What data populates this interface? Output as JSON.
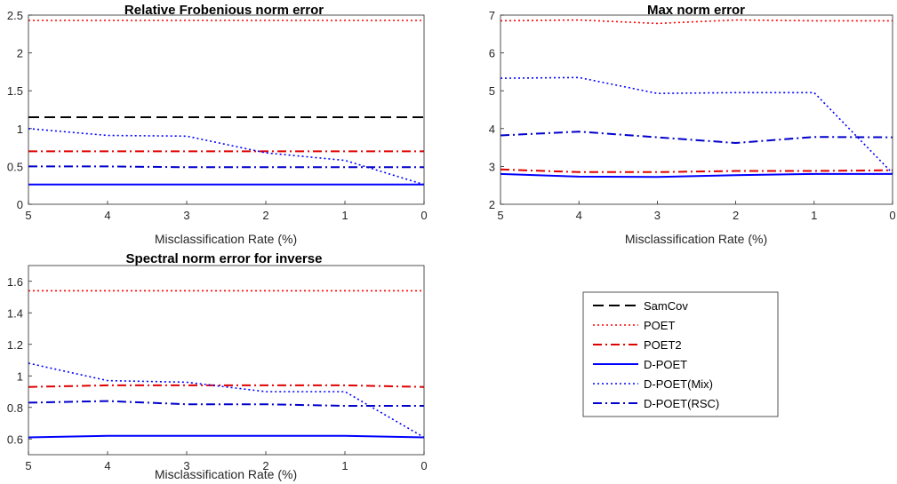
{
  "legend": {
    "placement": "lower-right",
    "entries": [
      "SamCov",
      "POET",
      "POET2",
      "D-POET",
      "D-POET(Mix)",
      "D-POET(RSC)"
    ]
  },
  "series_styles": [
    {
      "name": "SamCov",
      "color": "#000000",
      "dash": "dashed"
    },
    {
      "name": "POET",
      "color": "#ff0000",
      "dash": "dotted"
    },
    {
      "name": "POET2",
      "color": "#e00000",
      "dash": "dashdot"
    },
    {
      "name": "D-POET",
      "color": "#0000ff",
      "dash": "solid"
    },
    {
      "name": "D-POET(Mix)",
      "color": "#0000ff",
      "dash": "dotted"
    },
    {
      "name": "D-POET(RSC)",
      "color": "#0000cc",
      "dash": "dashdot"
    }
  ],
  "chart_data": [
    {
      "type": "line",
      "title": "Relative Frobenious norm error",
      "xlabel": "Misclassification Rate (%)",
      "ylabel": "",
      "x": [
        5,
        4,
        3,
        2,
        1,
        0
      ],
      "x_reversed": true,
      "xlim": [
        0,
        5
      ],
      "ylim": [
        0,
        2.5
      ],
      "xticks": [
        "5",
        "4",
        "3",
        "2",
        "1",
        "0"
      ],
      "yticks": [
        "0",
        "0.5",
        "1",
        "1.5",
        "2",
        "2.5"
      ],
      "grid": false,
      "series": [
        {
          "name": "SamCov",
          "values": [
            1.15,
            1.15,
            1.15,
            1.15,
            1.15,
            1.15
          ]
        },
        {
          "name": "POET",
          "values": [
            2.43,
            2.43,
            2.43,
            2.43,
            2.43,
            2.43
          ]
        },
        {
          "name": "POET2",
          "values": [
            0.7,
            0.7,
            0.7,
            0.7,
            0.7,
            0.7
          ]
        },
        {
          "name": "D-POET",
          "values": [
            0.26,
            0.26,
            0.26,
            0.26,
            0.26,
            0.26
          ]
        },
        {
          "name": "D-POET(Mix)",
          "values": [
            1.0,
            0.91,
            0.9,
            0.68,
            0.58,
            0.26
          ]
        },
        {
          "name": "D-POET(RSC)",
          "values": [
            0.5,
            0.5,
            0.49,
            0.49,
            0.49,
            0.49
          ]
        }
      ]
    },
    {
      "type": "line",
      "title": "Max norm error",
      "xlabel": "Misclassification Rate (%)",
      "ylabel": "",
      "x": [
        5,
        4,
        3,
        2,
        1,
        0
      ],
      "x_reversed": true,
      "xlim": [
        0,
        5
      ],
      "ylim": [
        2,
        7
      ],
      "xticks": [
        "5",
        "4",
        "3",
        "2",
        "1",
        "0"
      ],
      "yticks": [
        "2",
        "3",
        "4",
        "5",
        "6",
        "7"
      ],
      "grid": false,
      "series": [
        {
          "name": "POET",
          "values": [
            6.85,
            6.87,
            6.78,
            6.87,
            6.85,
            6.85
          ]
        },
        {
          "name": "POET2",
          "values": [
            2.92,
            2.85,
            2.85,
            2.88,
            2.88,
            2.9
          ]
        },
        {
          "name": "D-POET",
          "values": [
            2.8,
            2.73,
            2.72,
            2.77,
            2.8,
            2.8
          ]
        },
        {
          "name": "D-POET(Mix)",
          "values": [
            5.33,
            5.35,
            4.93,
            4.95,
            4.95,
            2.82
          ]
        },
        {
          "name": "D-POET(RSC)",
          "values": [
            3.82,
            3.92,
            3.77,
            3.62,
            3.78,
            3.77
          ]
        }
      ]
    },
    {
      "type": "line",
      "title": "Spectral norm error for inverse",
      "xlabel": "Misclassification Rate (%)",
      "ylabel": "",
      "x": [
        5,
        4,
        3,
        2,
        1,
        0
      ],
      "x_reversed": true,
      "xlim": [
        0,
        5
      ],
      "ylim": [
        0.5,
        1.7
      ],
      "xticks": [
        "5",
        "4",
        "3",
        "2",
        "1",
        "0"
      ],
      "yticks": [
        "0.6",
        "0.8",
        "1",
        "1.2",
        "1.4",
        "1.6"
      ],
      "ytick_values": [
        0.6,
        0.8,
        1.0,
        1.2,
        1.4,
        1.6
      ],
      "grid": false,
      "series": [
        {
          "name": "POET",
          "values": [
            1.54,
            1.54,
            1.54,
            1.54,
            1.54,
            1.54
          ]
        },
        {
          "name": "POET2",
          "values": [
            0.93,
            0.94,
            0.94,
            0.94,
            0.94,
            0.93
          ]
        },
        {
          "name": "D-POET",
          "values": [
            0.61,
            0.62,
            0.62,
            0.62,
            0.62,
            0.61
          ]
        },
        {
          "name": "D-POET(Mix)",
          "values": [
            1.08,
            0.97,
            0.96,
            0.9,
            0.9,
            0.61
          ]
        },
        {
          "name": "D-POET(RSC)",
          "values": [
            0.83,
            0.84,
            0.82,
            0.82,
            0.81,
            0.81
          ]
        }
      ]
    }
  ]
}
